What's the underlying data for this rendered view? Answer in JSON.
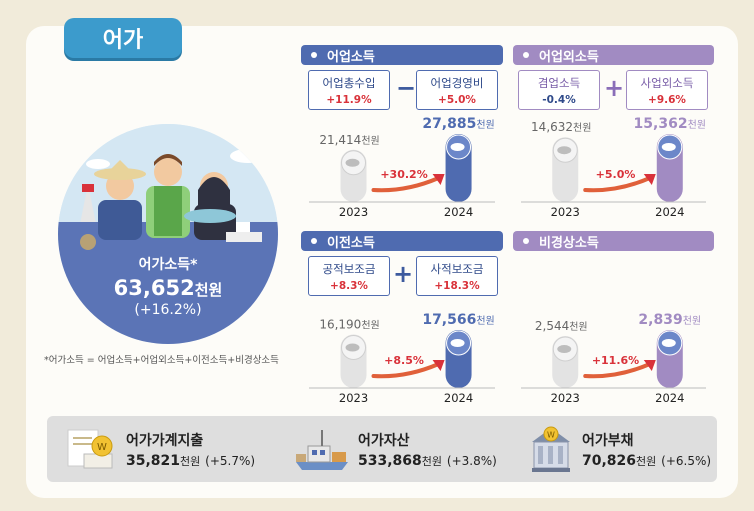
{
  "title": "어가",
  "hero": {
    "label": "어가소득*",
    "value": "63,652",
    "unit": "천원",
    "change": "(+16.2%)"
  },
  "footnote": "*어가소득 = 어업소득+어업외소득+이전소득+비경상소득",
  "panels": {
    "fishery": {
      "title": "어업소득",
      "left_box": {
        "label": "어업총수입",
        "pct": "+11.9%"
      },
      "operator": "−",
      "right_box": {
        "label": "어업경영비",
        "pct": "+5.0%"
      },
      "change": "+30.2%"
    },
    "nonfishery": {
      "title": "어업외소득",
      "left_box": {
        "label": "겸업소득",
        "pct": "-0.4%"
      },
      "operator": "+",
      "right_box": {
        "label": "사업외소득",
        "pct": "+9.6%"
      },
      "change": "+5.0%"
    },
    "transfer": {
      "title": "이전소득",
      "left_box": {
        "label": "공적보조금",
        "pct": "+8.3%"
      },
      "operator": "+",
      "right_box": {
        "label": "사적보조금",
        "pct": "+18.3%"
      },
      "change": "+8.5%"
    },
    "irregular": {
      "title": "비경상소득",
      "change": "+11.6%"
    }
  },
  "chart_data": [
    {
      "type": "bar",
      "title": "어업소득",
      "categories": [
        "2023",
        "2024"
      ],
      "values": [
        21414,
        27885
      ],
      "value_labels": [
        "21,414",
        "27,885"
      ],
      "unit": "천원",
      "change": "+30.2%"
    },
    {
      "type": "bar",
      "title": "어업외소득",
      "categories": [
        "2023",
        "2024"
      ],
      "values": [
        14632,
        15362
      ],
      "value_labels": [
        "14,632",
        "15,362"
      ],
      "unit": "천원",
      "change": "+5.0%"
    },
    {
      "type": "bar",
      "title": "이전소득",
      "categories": [
        "2023",
        "2024"
      ],
      "values": [
        16190,
        17566
      ],
      "value_labels": [
        "16,190",
        "17,566"
      ],
      "unit": "천원",
      "change": "+8.5%"
    },
    {
      "type": "bar",
      "title": "비경상소득",
      "categories": [
        "2023",
        "2024"
      ],
      "values": [
        2544,
        2839
      ],
      "value_labels": [
        "2,544",
        "2,839"
      ],
      "unit": "천원",
      "change": "+11.6%"
    }
  ],
  "bottom": {
    "expense": {
      "label": "어가가계지출",
      "value": "35,821",
      "unit": "천원",
      "change": "(+5.7%)"
    },
    "assets": {
      "label": "어가자산",
      "value": "533,868",
      "unit": "천원",
      "change": "(+3.8%)"
    },
    "debt": {
      "label": "어가부채",
      "value": "70,826",
      "unit": "천원",
      "change": "(+6.5%)"
    }
  },
  "colors": {
    "blue": "#4f6bb0",
    "purple": "#a18bc2",
    "tab": "#3c9bcc",
    "grey_bar": "#e3e3e3",
    "red": "#d9323a"
  }
}
